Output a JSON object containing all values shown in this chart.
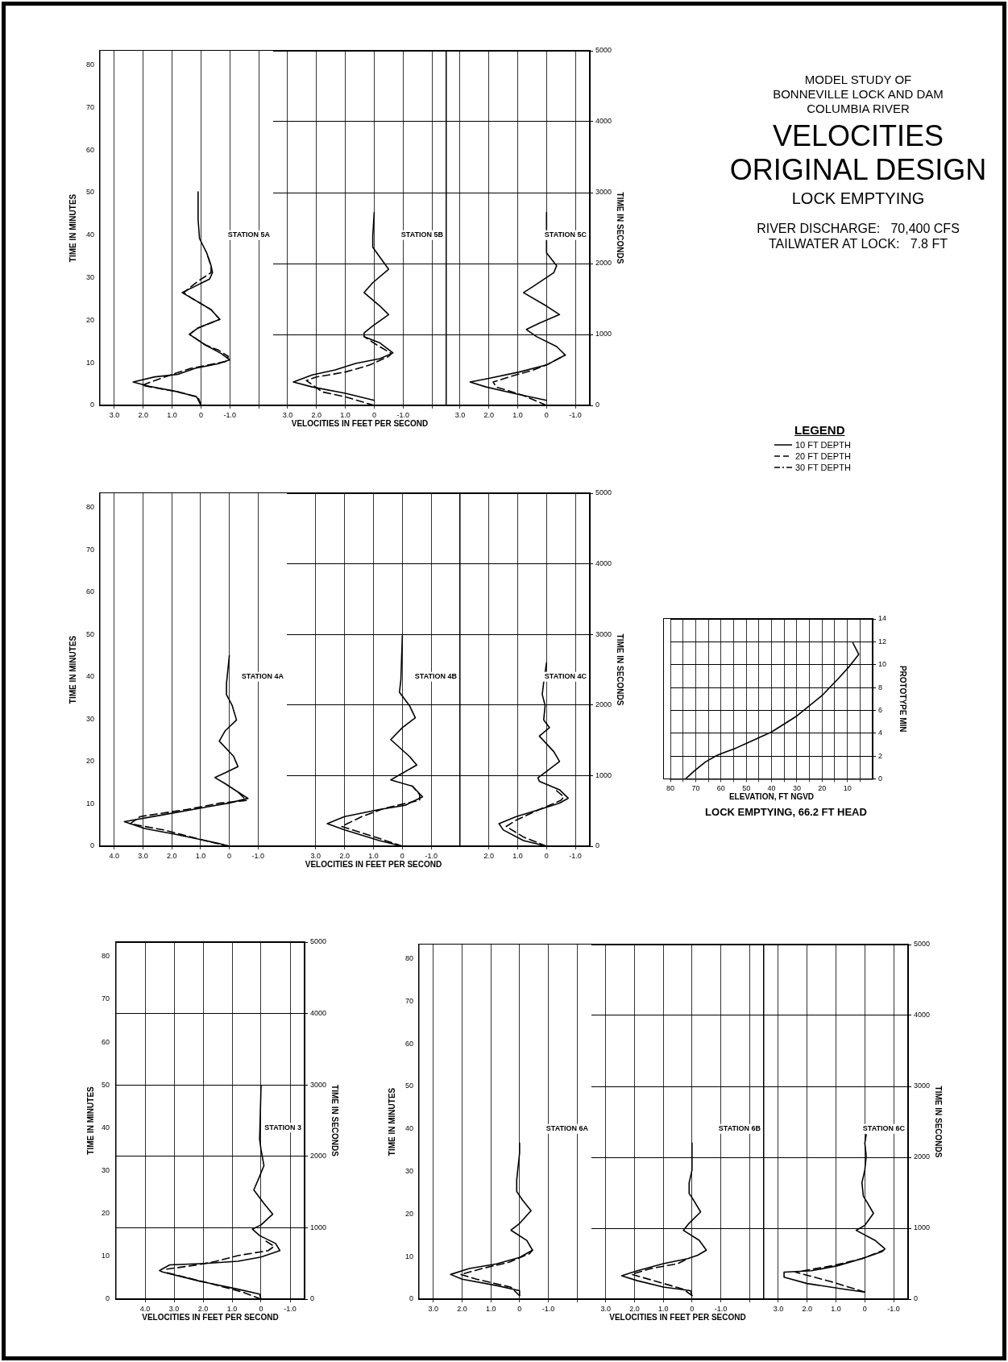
{
  "chart_data": [
    {
      "type": "line",
      "orientation": "horizontal",
      "ylabel": "TIME IN MINUTES",
      "ylim": [
        0,
        83.33
      ],
      "yticks": [
        0,
        10,
        20,
        30,
        40,
        50,
        60,
        70,
        80
      ],
      "xlim": [
        3.5,
        -2.5
      ],
      "xticks": [
        {
          "value": 3,
          "label": "3.0"
        },
        {
          "value": 2,
          "label": "2.0"
        },
        {
          "value": 1,
          "label": "1.0"
        },
        0,
        {
          "value": -1,
          "label": "-1.0"
        },
        {
          "value": -2,
          "label": null
        }
      ],
      "grid": "x",
      "annotations": [
        "STATION 5A"
      ],
      "series": [
        {
          "color": "#000000",
          "line_style": "solid",
          "x": [
            0,
            2,
            3.2,
            4.5,
            5.5,
            6.7,
            7.3,
            8.7,
            9.8,
            10.7,
            12.2,
            14.2,
            16.7,
            18.2,
            20.2,
            22.5,
            25.3,
            26.5,
            28,
            29.7,
            31.2,
            32.8,
            35.8,
            39.2,
            43.8,
            50.2
          ],
          "values": [
            0,
            0.15,
            0.8,
            1.8,
            2.35,
            1.6,
            0.8,
            0.2,
            -0.6,
            -1.0,
            -0.7,
            -0.15,
            0.4,
            0.1,
            -0.65,
            -0.35,
            0.35,
            0.65,
            0.2,
            -0.3,
            -0.4,
            -0.35,
            -0.2,
            0.05,
            0.1,
            0.1
          ]
        },
        {
          "color": "#000000",
          "line_style": "dashed",
          "x": [
            0,
            2,
            3.3,
            4.7,
            6.7,
            8.7,
            10.3,
            11.5,
            13,
            14.2,
            16.7,
            18.2,
            20.2,
            22.5,
            25.3,
            26.5,
            29.2,
            31.2,
            32.8,
            35.8
          ],
          "values": [
            0,
            0.1,
            0.9,
            2.05,
            1.25,
            0.35,
            -0.85,
            -0.95,
            -0.6,
            -0.15,
            0.4,
            0.1,
            -0.65,
            -0.35,
            0.35,
            0.6,
            0.1,
            -0.35,
            -0.35,
            -0.2
          ]
        }
      ]
    },
    {
      "type": "line",
      "orientation": "horizontal",
      "xlabel": "VELOCITIES IN FEET PER SECOND",
      "ylim": [
        0,
        5000
      ],
      "yticks": [
        0,
        1000,
        2000,
        3000,
        4000,
        5000
      ],
      "xlim": [
        3.5,
        -2.5
      ],
      "xticks": [
        {
          "value": 3,
          "label": "3.0"
        },
        {
          "value": 2,
          "label": "2.0"
        },
        {
          "value": 1,
          "label": "1.0"
        },
        0,
        {
          "value": -1,
          "label": "-1.0"
        },
        {
          "value": -2,
          "label": null
        }
      ],
      "grid": true,
      "tick_labels": "x",
      "annotations": [
        "STATION 5B"
      ],
      "series": [
        {
          "color": "#000000",
          "line_style": "solid",
          "x": [
            70,
            170,
            260,
            330,
            430,
            500,
            590,
            660,
            740,
            880,
            970,
            1020,
            1120,
            1280,
            1400,
            1590,
            1730,
            1920,
            2060,
            2230,
            2390,
            2720
          ],
          "values": [
            0,
            1.0,
            2.15,
            2.8,
            2.15,
            1.35,
            0.65,
            -0.2,
            -0.65,
            -0.2,
            0.35,
            0.35,
            0.05,
            -0.5,
            -0.2,
            0.35,
            0.05,
            -0.5,
            -0.25,
            0.05,
            0.05,
            0
          ]
        },
        {
          "color": "#000000",
          "line_style": "dashed",
          "x": [
            0,
            120,
            190,
            350,
            400,
            470,
            570,
            690,
            730,
            850,
            970
          ],
          "values": [
            0,
            1.0,
            1.8,
            2.35,
            2.0,
            1.0,
            0.15,
            -0.5,
            -0.6,
            -0.1,
            0.35
          ]
        }
      ]
    },
    {
      "type": "line",
      "orientation": "horizontal",
      "ylabel": "TIME IN SECONDS",
      "ylim": [
        0,
        5000
      ],
      "yticks": [
        0,
        1000,
        2000,
        3000,
        4000,
        5000
      ],
      "xlim": [
        3.5,
        -1.5
      ],
      "xticks": [
        {
          "value": 3,
          "label": "3.0"
        },
        {
          "value": 2,
          "label": "2.0"
        },
        {
          "value": 1,
          "label": "1.0"
        },
        0,
        {
          "value": -1,
          "label": "-1.0"
        }
      ],
      "grid": true,
      "annotations": [
        "STATION 5C"
      ],
      "series": [
        {
          "color": "#000000",
          "line_style": "solid",
          "x": [
            70,
            170,
            260,
            330,
            380,
            470,
            570,
            710,
            830,
            970,
            1070,
            1160,
            1280,
            1400,
            1590,
            1680,
            1870,
            1970,
            2150,
            2720
          ],
          "values": [
            0,
            1.15,
            2.1,
            2.65,
            2.0,
            0.95,
            0,
            -0.65,
            -0.35,
            0.35,
            0.7,
            0.25,
            -0.45,
            0,
            0.8,
            0.45,
            -0.25,
            -0.35,
            0,
            0
          ]
        },
        {
          "color": "#000000",
          "line_style": "dashed",
          "x": [
            0,
            140,
            260,
            330,
            400,
            500,
            570,
            710
          ],
          "values": [
            0,
            0.8,
            1.75,
            1.85,
            1.3,
            0.45,
            0,
            -0.65
          ]
        }
      ]
    },
    {
      "type": "line",
      "orientation": "horizontal",
      "ylabel": "TIME IN MINUTES",
      "ylim": [
        0,
        83.33
      ],
      "yticks": [
        0,
        10,
        20,
        30,
        40,
        50,
        60,
        70,
        80
      ],
      "xlim": [
        4.5,
        -2
      ],
      "xticks": [
        {
          "value": 4,
          "label": "4.0"
        },
        {
          "value": 3,
          "label": "3.0"
        },
        {
          "value": 2,
          "label": "2.0"
        },
        {
          "value": 1,
          "label": "1.0"
        },
        0,
        {
          "value": -1,
          "label": "-1.0"
        }
      ],
      "grid": "x",
      "annotations": [
        "STATION 4A"
      ],
      "series": [
        {
          "color": "#000000",
          "line_style": "solid",
          "x": [
            0,
            0.7,
            2.7,
            4.2,
            5.8,
            7.3,
            9,
            10.2,
            11.3,
            12.8,
            14.8,
            16.2,
            17.3,
            18.8,
            21.2,
            24.8,
            27.2,
            29.8,
            33.2,
            35.8,
            38.3,
            45
          ],
          "values": [
            0,
            0.4,
            1.8,
            2.95,
            3.65,
            2.4,
            1.0,
            0,
            -0.65,
            -0.3,
            0.15,
            0.5,
            0.15,
            -0.3,
            -0.15,
            0.35,
            0.15,
            -0.25,
            -0.1,
            0.1,
            0.1,
            0
          ]
        },
        {
          "color": "#000000",
          "line_style": "dashed",
          "x": [
            0,
            1,
            3.8,
            5.3,
            7,
            8.7,
            10.2,
            10.8,
            12.8
          ],
          "values": [
            0,
            0.65,
            2.25,
            3.45,
            3.1,
            1.45,
            0.3,
            -0.6,
            -0.3
          ]
        }
      ]
    },
    {
      "type": "line",
      "orientation": "horizontal",
      "xlabel": "VELOCITIES IN FEET PER SECOND",
      "ylim": [
        0,
        5000
      ],
      "yticks": [
        0,
        1000,
        2000,
        3000,
        4000,
        5000
      ],
      "xlim": [
        4,
        -2
      ],
      "xticks": [
        {
          "value": 3,
          "label": "3.0"
        },
        {
          "value": 2,
          "label": "2.0"
        },
        {
          "value": 1,
          "label": "1.0"
        },
        0,
        {
          "value": -1,
          "label": "-1.0"
        }
      ],
      "grid": true,
      "tick_labels": "x",
      "annotations": [
        "STATION 4B"
      ],
      "series": [
        {
          "color": "#000000",
          "line_style": "solid",
          "x": [
            0,
            80,
            230,
            320,
            420,
            520,
            580,
            700,
            850,
            940,
            1010,
            1150,
            1270,
            1510,
            1680,
            1820,
            1990,
            2180,
            2360,
            2980
          ],
          "values": [
            0,
            0.8,
            2.0,
            2.6,
            2.0,
            0.8,
            -0.1,
            -0.7,
            -0.35,
            0.4,
            0.1,
            -0.5,
            -0.25,
            0.4,
            0,
            -0.45,
            -0.25,
            0.1,
            0.05,
            0
          ]
        },
        {
          "color": "#000000",
          "line_style": "dashed",
          "x": [
            0,
            110,
            280,
            420,
            540,
            650,
            730,
            850
          ],
          "values": [
            0,
            0.8,
            2.1,
            1.4,
            0.6,
            -0.6,
            -0.6,
            -0.35
          ]
        }
      ]
    },
    {
      "type": "line",
      "orientation": "horizontal",
      "ylabel": "TIME IN SECONDS",
      "ylim": [
        0,
        5000
      ],
      "yticks": [
        0,
        1000,
        2000,
        3000,
        4000,
        5000
      ],
      "xlim": [
        3,
        -1.5
      ],
      "xticks": [
        {
          "value": 2,
          "label": "2.0"
        },
        {
          "value": 1,
          "label": "1.0"
        },
        0,
        {
          "value": -1,
          "label": "-1.0"
        }
      ],
      "grid": true,
      "annotations": [
        "STATION 4C"
      ],
      "series": [
        {
          "color": "#000000",
          "line_style": "solid",
          "x": [
            0,
            80,
            230,
            320,
            420,
            520,
            610,
            680,
            800,
            920,
            970,
            1060,
            1200,
            1340,
            1560,
            1680,
            1790,
            1990,
            2150,
            2320,
            2600
          ],
          "values": [
            0,
            0.8,
            1.5,
            1.65,
            1.05,
            0.25,
            -0.45,
            -0.75,
            -0.45,
            0.25,
            0.3,
            0,
            -0.45,
            -0.25,
            0.25,
            -0.1,
            0.1,
            0.05,
            0.15,
            0.1,
            0
          ]
        },
        {
          "color": "#000000",
          "line_style": "dashed",
          "x": [
            0,
            130,
            280,
            370,
            520,
            650,
            700,
            820
          ],
          "values": [
            0,
            0.8,
            1.4,
            1.05,
            0.25,
            -0.5,
            -0.6,
            -0.25
          ]
        }
      ]
    },
    {
      "type": "line",
      "orientation": "horizontal",
      "y2label": "TIME IN MINUTES",
      "ylabel": "TIME IN SECONDS",
      "xlabel": "VELOCITIES IN FEET PER SECOND",
      "ylim": [
        0,
        5000
      ],
      "yticks": [
        0,
        1000,
        2000,
        3000,
        4000,
        5000
      ],
      "y2lim": [
        0,
        83.33
      ],
      "y2ticks": [
        0,
        10,
        20,
        30,
        40,
        50,
        60,
        70,
        80
      ],
      "xlim": [
        5,
        -1.5
      ],
      "xticks": [
        {
          "value": 4,
          "label": "4.0"
        },
        {
          "value": 3,
          "label": "3.0"
        },
        {
          "value": 2,
          "label": "2.0"
        },
        {
          "value": 1,
          "label": "1.0"
        },
        0,
        {
          "value": -1,
          "label": "-1.0"
        }
      ],
      "grid": true,
      "annotations": [
        "STATION 3"
      ],
      "series": [
        {
          "color": "#000000",
          "line_style": "solid",
          "x": [
            0,
            70,
            140,
            250,
            380,
            400,
            480,
            500,
            530,
            590,
            680,
            780,
            890,
            980,
            1040,
            1190,
            1340,
            1530,
            1720,
            1870,
            2090,
            2240,
            2990
          ],
          "values": [
            0,
            0.05,
            0.8,
            2.1,
            3.4,
            3.5,
            3.15,
            1.95,
            0.8,
            0,
            -0.65,
            -0.5,
            0.05,
            0.3,
            0,
            -0.4,
            -0.1,
            0.25,
            0.05,
            -0.1,
            0,
            0.05,
            0
          ]
        },
        {
          "color": "#000000",
          "line_style": "dashed",
          "x": [
            0,
            100,
            220,
            370,
            420,
            480,
            530,
            610,
            680,
            740,
            830
          ],
          "values": [
            0,
            0.65,
            1.75,
            3.25,
            3.25,
            2.2,
            1.55,
            0.8,
            -0.25,
            -0.45,
            -0.1
          ]
        }
      ]
    },
    {
      "type": "line",
      "orientation": "horizontal",
      "ylabel": "TIME IN MINUTES",
      "ylim": [
        0,
        83.33
      ],
      "yticks": [
        0,
        10,
        20,
        30,
        40,
        50,
        60,
        70,
        80
      ],
      "xlim": [
        3.5,
        -2.5
      ],
      "xticks": [
        {
          "value": 3,
          "label": "3.0"
        },
        {
          "value": 2,
          "label": "2.0"
        },
        {
          "value": 1,
          "label": "1.0"
        },
        0,
        {
          "value": -1,
          "label": "-1.0"
        },
        {
          "value": -2,
          "label": null
        }
      ],
      "grid": "x",
      "annotations": [
        "STATION 6A"
      ],
      "series": [
        {
          "color": "#000000",
          "line_style": "solid",
          "x": [
            0.8,
            2,
            3.2,
            4.7,
            5.8,
            7.2,
            8.3,
            9.8,
            11.5,
            13.8,
            16.2,
            17.8,
            20.8,
            23.3,
            25.3,
            28,
            31.2,
            34.3,
            36.7
          ],
          "values": [
            0,
            0,
            0.8,
            2.0,
            2.4,
            1.75,
            0.8,
            0,
            -0.45,
            -0.25,
            0.3,
            0,
            -0.4,
            -0.1,
            0.1,
            0.1,
            0.05,
            0,
            0
          ]
        },
        {
          "color": "#000000",
          "line_style": "dashed",
          "x": [
            0.8,
            2.8,
            4.7,
            5.8,
            7.2,
            8.7,
            10.7,
            11.5
          ],
          "values": [
            0,
            0.3,
            1.5,
            2.05,
            1.3,
            0.35,
            -0.35,
            -0.45
          ]
        }
      ]
    },
    {
      "type": "line",
      "orientation": "horizontal",
      "xlabel": "VELOCITIES IN FEET PER SECOND",
      "ylim": [
        0,
        5000
      ],
      "yticks": [
        0,
        1000,
        2000,
        3000,
        4000,
        5000
      ],
      "xlim": [
        3.5,
        -2.5
      ],
      "xticks": [
        {
          "value": 3,
          "label": "3.0"
        },
        {
          "value": 2,
          "label": "2.0"
        },
        {
          "value": 1,
          "label": "1.0"
        },
        0,
        {
          "value": -1,
          "label": "-1.0"
        },
        {
          "value": -2,
          "label": null
        }
      ],
      "grid": true,
      "tick_labels": "x",
      "annotations": [
        "STATION 6B"
      ],
      "series": [
        {
          "color": "#000000",
          "line_style": "solid",
          "x": [
            50,
            120,
            170,
            260,
            330,
            400,
            500,
            570,
            620,
            690,
            830,
            970,
            1070,
            1230,
            1400,
            1490,
            1640,
            1820,
            2200
          ],
          "values": [
            0,
            0.05,
            1.0,
            1.9,
            2.45,
            1.9,
            1.0,
            0.15,
            -0.2,
            -0.5,
            -0.25,
            0.3,
            0.1,
            -0.3,
            -0.05,
            0.1,
            0.1,
            0,
            0
          ]
        },
        {
          "color": "#000000",
          "line_style": "dashed",
          "x": [
            50,
            140,
            350,
            430,
            500,
            570
          ],
          "values": [
            0,
            0.3,
            2.1,
            1.45,
            0.5,
            0.15
          ]
        }
      ]
    },
    {
      "type": "line",
      "orientation": "horizontal",
      "ylabel": "TIME IN SECONDS",
      "ylim": [
        0,
        5000
      ],
      "yticks": [
        0,
        1000,
        2000,
        3000,
        4000,
        5000
      ],
      "xlim": [
        3.5,
        -1.5
      ],
      "xticks": [
        {
          "value": 3,
          "label": "3.0"
        },
        {
          "value": 2,
          "label": "2.0"
        },
        {
          "value": 1,
          "label": "1.0"
        },
        0,
        {
          "value": -1,
          "label": "-1.0"
        }
      ],
      "grid": true,
      "annotations": [
        "STATION 6C"
      ],
      "series": [
        {
          "color": "#000000",
          "line_style": "solid",
          "x": [
            100,
            140,
            220,
            310,
            380,
            400,
            470,
            570,
            670,
            710,
            830,
            970,
            1040,
            1210,
            1350,
            1450,
            1640,
            1820,
            2020,
            2200,
            2320
          ],
          "values": [
            0,
            0.7,
            2.0,
            2.8,
            2.8,
            1.85,
            0.95,
            0.1,
            -0.6,
            -0.7,
            -0.35,
            0.3,
            0,
            -0.3,
            -0.1,
            0.05,
            0.1,
            0,
            -0.05,
            0,
            -0.05
          ]
        },
        {
          "color": "#000000",
          "line_style": "dashed",
          "x": [
            100,
            250,
            380,
            470,
            570,
            690
          ],
          "values": [
            0,
            1.2,
            2.4,
            1.15,
            0.1,
            -0.65
          ]
        }
      ]
    },
    {
      "type": "line",
      "orientation": "horizontal",
      "title": "LOCK EMPTYING, 66.2 FT HEAD",
      "ylabel": "PROTOTYPE MIN",
      "xlabel": "ELEVATION, FT NGVD",
      "color": "#000000",
      "x": [
        0,
        0.8,
        1.5,
        2,
        2.2,
        2.7,
        3.1,
        4.1,
        5.5,
        7.3,
        8.8,
        9.9,
        10.9,
        11.9
      ],
      "values": [
        74,
        70,
        66,
        62,
        60,
        54,
        50,
        40,
        30,
        20,
        13.5,
        9,
        5.5,
        7.8
      ],
      "ylim": [
        0,
        14
      ],
      "yticks": [
        0,
        2,
        4,
        6,
        8,
        10,
        12,
        14
      ],
      "xlim": [
        80,
        0
      ],
      "xticks": [
        80,
        {
          "value": 75,
          "label": null
        },
        70,
        {
          "value": 65,
          "label": null
        },
        60,
        {
          "value": 55,
          "label": null
        },
        50,
        {
          "value": 45,
          "label": null
        },
        40,
        {
          "value": 35,
          "label": null
        },
        30,
        {
          "value": 25,
          "label": null
        },
        20,
        {
          "value": 15,
          "label": null
        },
        10,
        {
          "value": 5,
          "label": null
        }
      ],
      "grid": true
    },
    {
      "type": "other",
      "legend_title": "LEGEND",
      "annotations": [
        "10 FT DEPTH",
        "20 FT DEPTH",
        "30 FT DEPTH"
      ]
    },
    {
      "type": "other",
      "title": "VELOCITIES",
      "subtitle": "ORIGINAL DESIGN",
      "annotations": [
        "MODEL STUDY OF",
        "BONNEVILLE LOCK AND DAM",
        "COLUMBIA RIVER",
        "LOCK EMPTYING",
        "RIVER DISCHARGE:   70,400 CFS",
        "TAILWATER AT LOCK:   7.8 FT"
      ]
    }
  ]
}
